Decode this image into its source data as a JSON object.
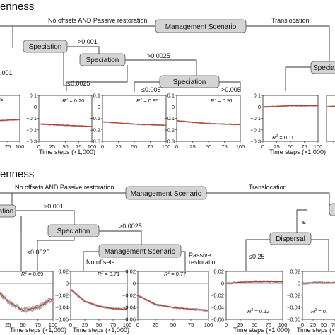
{
  "sections": {
    "top": {
      "title": "enness"
    },
    "bottom": {
      "title": "enness"
    }
  },
  "nodes": {
    "management_scenario": "Management Scenario",
    "speciation": "Speciation",
    "dispersal": "Dispersal"
  },
  "edge_labels": {
    "no_offsets_passive": "No offsets AND Passive restoration",
    "translocation": "Translocation",
    "gt_0001": ">0.001",
    "gt_00025": ">0.0025",
    "le_00025": "≤0.0025",
    "le_0005": "≤0.005",
    "gt_0005": ">0.005",
    "partial_001": ".001",
    "no_offsets": "No offsets",
    "passive_restoration_1": "Passive",
    "passive_restoration_2": "restoration",
    "le_025": "≤0.25",
    "le_partial": "≤"
  },
  "axes": {
    "x_title": "Time steps (×1,000)",
    "x_ticks": [
      "75",
      "100",
      "0",
      "25",
      "50",
      "75",
      "100",
      "0",
      "25",
      "50",
      "75",
      "100",
      "0",
      "25",
      "50",
      "75",
      "100",
      "0",
      "25",
      "50",
      "75",
      "100"
    ],
    "top_y_ticks": [
      "0.1",
      "0",
      "−0.1",
      "−0.2",
      "−0.3"
    ],
    "bottom_y_ticks": [
      "0.02",
      "0",
      "−0.02",
      "−0.04",
      "−0.06"
    ],
    "top_partial_label": "s"
  },
  "r2": {
    "prefix": "R",
    "top_a": " = 0.20",
    "top_b": " = 0.85",
    "top_c": " = 0.91",
    "top_d": " = 0.11",
    "bot_a": " = 0.69",
    "bot_b": " = 0.71",
    "bot_c": " = 0.77",
    "bot_d": " = 0.12",
    "bot_e": " = 0."
  },
  "chart_data": {
    "type": "line",
    "top_panels": [
      {
        "ylim": [
          -0.3,
          0.1
        ],
        "xlim": [
          0,
          100
        ],
        "r2": null,
        "red": [
          [
            0,
            -0.14
          ],
          [
            25,
            -0.13
          ],
          [
            50,
            -0.12
          ],
          [
            75,
            -0.115
          ],
          [
            100,
            -0.11
          ]
        ]
      },
      {
        "ylim": [
          -0.3,
          0.1
        ],
        "xlim": [
          0,
          100
        ],
        "r2": 0.2,
        "red": [
          [
            0,
            -0.15
          ],
          [
            25,
            -0.155
          ],
          [
            50,
            -0.16
          ],
          [
            75,
            -0.165
          ],
          [
            100,
            -0.17
          ]
        ]
      },
      {
        "ylim": [
          -0.3,
          0.1
        ],
        "xlim": [
          0,
          100
        ],
        "r2": 0.85,
        "red": [
          [
            0,
            -0.13
          ],
          [
            25,
            -0.14
          ],
          [
            50,
            -0.15
          ],
          [
            75,
            -0.155
          ],
          [
            100,
            -0.16
          ]
        ]
      },
      {
        "ylim": [
          -0.3,
          0.1
        ],
        "xlim": [
          0,
          100
        ],
        "r2": 0.91,
        "red": [
          [
            0,
            -0.12
          ],
          [
            25,
            -0.135
          ],
          [
            50,
            -0.145
          ],
          [
            75,
            -0.15
          ],
          [
            100,
            -0.155
          ]
        ]
      },
      {
        "ylim": [
          -0.3,
          0.1
        ],
        "xlim": [
          0,
          100
        ],
        "r2": 0.11,
        "red": [
          [
            0,
            0.0
          ],
          [
            25,
            0.005
          ],
          [
            50,
            0.01
          ],
          [
            75,
            0.01
          ],
          [
            100,
            0.01
          ]
        ]
      }
    ],
    "bottom_panels": [
      {
        "ylim": [
          -0.06,
          0.02
        ],
        "xlim": [
          0,
          100
        ],
        "r2": 0.69,
        "red": [
          [
            0,
            -0.005
          ],
          [
            25,
            -0.03
          ],
          [
            50,
            -0.045
          ],
          [
            75,
            -0.04
          ],
          [
            100,
            -0.025
          ]
        ]
      },
      {
        "ylim": [
          -0.06,
          0.02
        ],
        "xlim": [
          0,
          100
        ],
        "r2": 0.71,
        "red": [
          [
            0,
            -0.01
          ],
          [
            25,
            -0.03
          ],
          [
            50,
            -0.038
          ],
          [
            75,
            -0.042
          ],
          [
            100,
            -0.043
          ]
        ]
      },
      {
        "ylim": [
          -0.06,
          0.02
        ],
        "xlim": [
          0,
          100
        ],
        "r2": 0.77,
        "red": [
          [
            0,
            -0.02
          ],
          [
            25,
            -0.035
          ],
          [
            50,
            -0.04
          ],
          [
            75,
            -0.043
          ],
          [
            100,
            -0.045
          ]
        ]
      },
      {
        "ylim": [
          -0.06,
          0.02
        ],
        "xlim": [
          0,
          100
        ],
        "r2": 0.12,
        "red": [
          [
            0,
            0.0
          ],
          [
            25,
            0.002
          ],
          [
            50,
            0.003
          ],
          [
            75,
            0.003
          ],
          [
            100,
            0.003
          ]
        ]
      },
      {
        "ylim": [
          -0.06,
          0.02
        ],
        "xlim": [
          0,
          100
        ],
        "r2": null,
        "red": [
          [
            0,
            0.0
          ],
          [
            25,
            0.001
          ],
          [
            50,
            0.001
          ],
          [
            75,
            0.001
          ],
          [
            100,
            0.001
          ]
        ]
      }
    ]
  }
}
